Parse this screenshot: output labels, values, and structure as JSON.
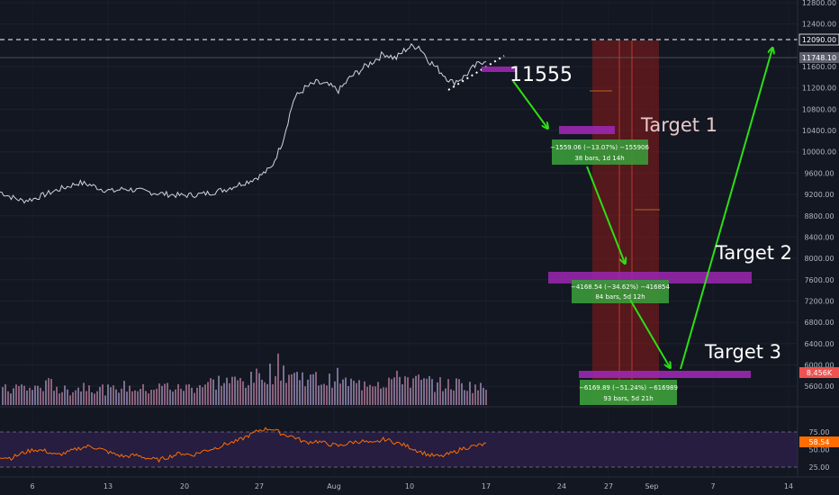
{
  "chart_data": {
    "type": "candlestick",
    "title": "",
    "price_axis": {
      "range": [
        5400,
        12800
      ],
      "ticks": [
        12800,
        12400,
        11600,
        11200,
        10800,
        10400,
        10000,
        9600,
        9200,
        8800,
        8400,
        8000,
        7600,
        7200,
        6800,
        6400,
        6000,
        5600
      ]
    },
    "price_labels": {
      "level_line": {
        "value": 12090,
        "text": "12090.00"
      },
      "current": {
        "value": 11748.1,
        "text": "11748.10"
      },
      "volume": {
        "text": "8.456K"
      }
    },
    "x_axis": {
      "ticks": [
        "6",
        "13",
        "20",
        "27",
        "Aug",
        "10",
        "17",
        "24",
        "27",
        "Sep",
        "7",
        "14"
      ]
    },
    "price_series": {
      "description": "BTC-style daily price path, July to mid-August",
      "close": [
        9250,
        9150,
        9080,
        9120,
        9200,
        9280,
        9350,
        9420,
        9380,
        9300,
        9260,
        9310,
        9280,
        9250,
        9220,
        9200,
        9180,
        9190,
        9210,
        9250,
        9300,
        9380,
        9450,
        9550,
        9700,
        10200,
        11000,
        11200,
        11300,
        11250,
        11150,
        11400,
        11550,
        11700,
        11850,
        11750,
        11950,
        12000,
        11700,
        11500,
        11300,
        11400,
        11600,
        11748
      ]
    },
    "volume_series": {
      "values": [
        45,
        52,
        48,
        55,
        60,
        42,
        50,
        58,
        47,
        44,
        53,
        49,
        46,
        51,
        55,
        48,
        52,
        60,
        65,
        70,
        68,
        72,
        80,
        95,
        110,
        90,
        85,
        75,
        70,
        80,
        65,
        60,
        72,
        68,
        75,
        82,
        70,
        66,
        60,
        58,
        62,
        55,
        50,
        52
      ]
    },
    "rsi": {
      "ticks": [
        75.0,
        50.0,
        25.0
      ],
      "current": "58.54",
      "values": [
        40,
        38,
        45,
        50,
        48,
        42,
        46,
        52,
        55,
        50,
        44,
        40,
        42,
        38,
        35,
        40,
        45,
        42,
        48,
        52,
        58,
        62,
        70,
        78,
        80,
        72,
        68,
        60,
        62,
        58,
        55,
        60,
        62,
        58,
        65,
        60,
        55,
        48,
        42,
        40,
        45,
        52,
        55,
        58
      ]
    },
    "annotations": {
      "level_11555": {
        "label": "11555",
        "value": 11555
      },
      "target1": {
        "label": "Target 1",
        "value": 10350
      },
      "target2": {
        "label": "Target 2",
        "value": 7750
      },
      "target3": {
        "label": "Target 3",
        "value": 5950
      },
      "measure1": {
        "line1": "−1559.06 (−13.07%) −155906",
        "line2": "38 bars, 1d 14h"
      },
      "measure2": {
        "line1": "−4168.54 (−34.62%) −416854",
        "line2": "84 bars, 5d 12h"
      },
      "measure3": {
        "line1": "−6169.89 (−51.24%) −616989",
        "line2": "93 bars, 5d 21h"
      }
    },
    "colors": {
      "background": "#131722",
      "price_line": "#d1d4dc",
      "arrow": "#2ede15",
      "zone": "#8b1a1a",
      "target_box": "#9c27b0",
      "measure_box": "#3a9a3a",
      "rsi_line": "#ff6d00",
      "rsi_band": "#2a1f45",
      "volume": "#b2a8c9"
    }
  }
}
